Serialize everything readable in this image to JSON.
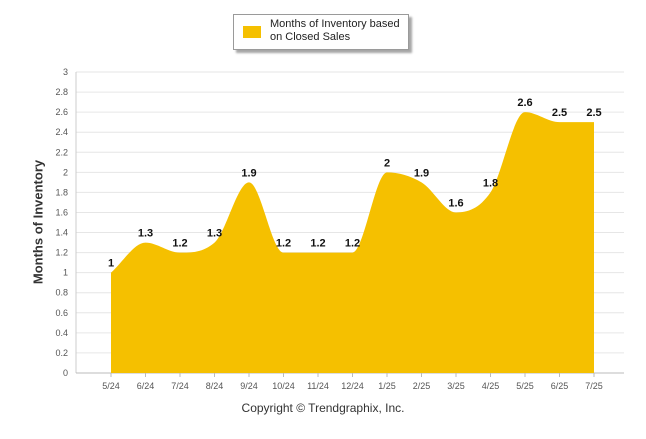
{
  "chart_data": {
    "type": "area",
    "categories": [
      "5/24",
      "6/24",
      "7/24",
      "8/24",
      "9/24",
      "10/24",
      "11/24",
      "12/24",
      "1/25",
      "2/25",
      "3/25",
      "4/25",
      "5/25",
      "6/25",
      "7/25"
    ],
    "series": [
      {
        "name": "Months of Inventory based on Closed Sales",
        "values": [
          1,
          1.3,
          1.2,
          1.3,
          1.9,
          1.2,
          1.2,
          1.2,
          2,
          1.9,
          1.6,
          1.8,
          2.6,
          2.5,
          2.5
        ]
      }
    ],
    "data_labels": [
      "1",
      "1.3",
      "1.2",
      "1.3",
      "1.9",
      "1.2",
      "1.2",
      "1.2",
      "2",
      "1.9",
      "1.6",
      "1.8",
      "2.6",
      "2.5",
      "2.5"
    ],
    "yticks": [
      0,
      0.2,
      0.4,
      0.6,
      0.8,
      1,
      1.2,
      1.4,
      1.6,
      1.8,
      2,
      2.2,
      2.4,
      2.6,
      2.8,
      3
    ],
    "ylim": [
      0,
      3
    ],
    "ylabel": "Months of Inventory",
    "xlabel": "",
    "legend_position": "top-center",
    "grid": true,
    "colors": {
      "fill": "#F5C000",
      "grid": "#e6e6e6"
    }
  },
  "legend": {
    "label": "Months of Inventory based on Closed Sales"
  },
  "footer": {
    "copyright": "Copyright © Trendgraphix, Inc."
  }
}
